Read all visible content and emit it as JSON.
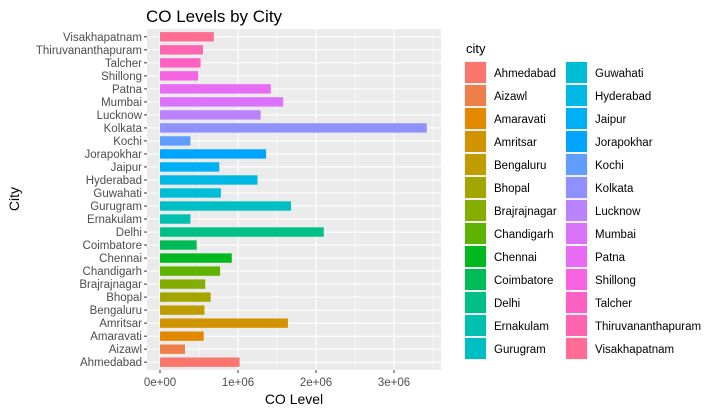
{
  "chart_data": {
    "type": "bar",
    "orientation": "horizontal",
    "title": "CO Levels by City",
    "xlabel": "CO Level",
    "ylabel": "City",
    "xlim": [
      0,
      3500000
    ],
    "x_ticks": [
      0,
      1000000,
      2000000,
      3000000
    ],
    "x_tick_labels": [
      "0e+00",
      "1e+06",
      "2e+06",
      "3e+06"
    ],
    "grid": true,
    "legend_title": "city",
    "legend_position": "right",
    "categories": [
      "Ahmedabad",
      "Aizawl",
      "Amaravati",
      "Amritsar",
      "Bengaluru",
      "Bhopal",
      "Brajrajnagar",
      "Chandigarh",
      "Chennai",
      "Coimbatore",
      "Delhi",
      "Ernakulam",
      "Gurugram",
      "Guwahati",
      "Hyderabad",
      "Jaipur",
      "Jorapokhar",
      "Kochi",
      "Kolkata",
      "Lucknow",
      "Mumbai",
      "Patna",
      "Shillong",
      "Talcher",
      "Thiruvananthapuram",
      "Visakhapatnam"
    ],
    "values": [
      1020000,
      320000,
      560000,
      1640000,
      570000,
      650000,
      580000,
      770000,
      920000,
      470000,
      2100000,
      390000,
      1680000,
      780000,
      1250000,
      760000,
      1360000,
      390000,
      3420000,
      1290000,
      1580000,
      1420000,
      490000,
      520000,
      550000,
      690000
    ],
    "colors": [
      "#F8766D",
      "#EF7F48",
      "#E38900",
      "#D29300",
      "#BF9C00",
      "#A3A500",
      "#85AD00",
      "#5EB300",
      "#00B81F",
      "#00BC56",
      "#00C087",
      "#00C0AF",
      "#00BFC4",
      "#00BDD5",
      "#00B8E5",
      "#00B0F6",
      "#00A5FF",
      "#619CFF",
      "#8F91FF",
      "#B983FF",
      "#DB72FB",
      "#E76BF3",
      "#F564E3",
      "#FF61C3",
      "#FF64B0",
      "#FF6C94"
    ]
  }
}
